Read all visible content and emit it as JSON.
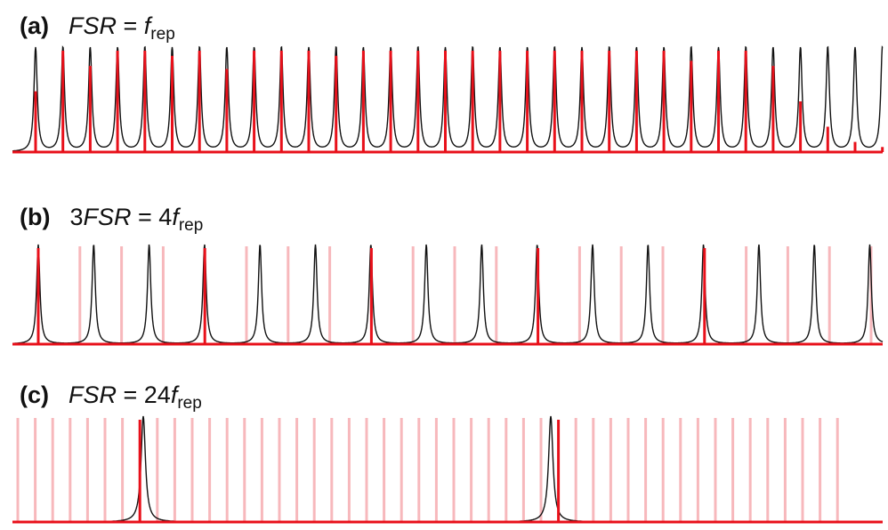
{
  "panels": [
    {
      "tag": "(a)",
      "eq": {
        "prefix": "",
        "lhs": "FSR",
        "middle": " = ",
        "coef": "",
        "var": "f",
        "sub": "rep"
      },
      "ratio": "FSR = f_rep",
      "comb_lines_per_resonance": 1,
      "comb_count": 33,
      "comb_color": "#e8101a",
      "comb_faded_color": "#f7b8bc",
      "resonance_color": "#111111"
    },
    {
      "tag": "(b)",
      "eq": {
        "prefix": "3",
        "lhs": "FSR",
        "middle": " = ",
        "coef": "4",
        "var": "f",
        "sub": "rep"
      },
      "ratio": "3 FSR = 4 f_rep",
      "comb_lines_per_resonance": 1.333,
      "comb_count": 21,
      "comb_color": "#e8101a",
      "comb_faded_color": "#f7b8bc",
      "resonance_color": "#111111"
    },
    {
      "tag": "(c)",
      "eq": {
        "prefix": "",
        "lhs": "FSR",
        "middle": " = ",
        "coef": "24",
        "var": "f",
        "sub": "rep"
      },
      "ratio": "FSR = 24 f_rep",
      "comb_lines_per_resonance": 24,
      "comb_count": 48,
      "comb_color": "#e8101a",
      "comb_faded_color": "#f7b8bc",
      "resonance_color": "#111111"
    }
  ]
}
